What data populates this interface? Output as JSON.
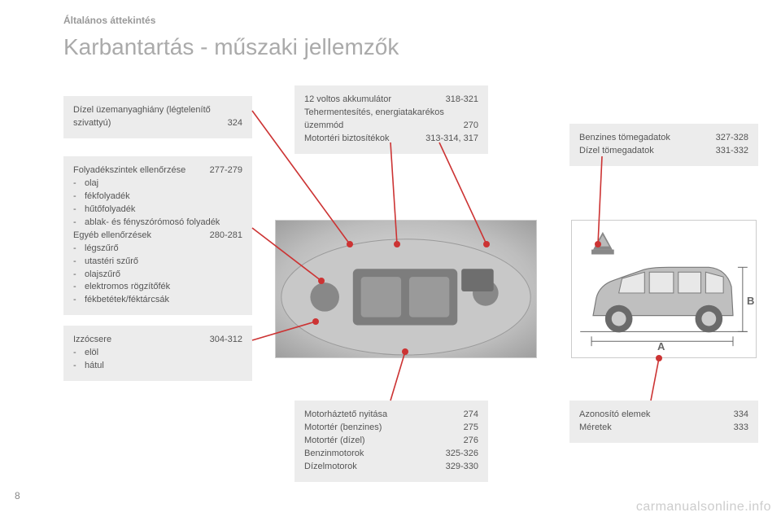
{
  "header": {
    "subtitle": "Általános áttekintés",
    "title": "Karbantartás - műszaki jellemzők"
  },
  "boxes": {
    "diesel_fuel": {
      "line1_label": "Dízel üzemanyaghiány (légtelenítő",
      "line2_label": "  szivattyú)",
      "line2_pages": "324"
    },
    "battery": {
      "r1_label": "12 voltos akkumulátor",
      "r1_pages": "318-321",
      "r2_label": "Tehermentesítés, energiatakarékos",
      "r3_label": "  üzemmód",
      "r3_pages": "270",
      "r4_label": "Motortéri biztosítékok",
      "r4_pages": "313-314, 317"
    },
    "weights": {
      "r1_label": "Benzines tömegadatok",
      "r1_pages": "327-328",
      "r2_label": "Dízel tömegadatok",
      "r2_pages": "331-332"
    },
    "fluids": {
      "r1_label": "Folyadékszintek ellenőrzése",
      "r1_pages": "277-279",
      "li1": "olaj",
      "li2": "fékfolyadék",
      "li3": "hűtőfolyadék",
      "li4": "ablak- és fényszórómosó folyadék",
      "r2_label": "Egyéb ellenőrzések",
      "r2_pages": "280-281",
      "li5": "légszűrő",
      "li6": "utastéri szűrő",
      "li7": "olajszűrő",
      "li8": "elektromos rögzítőfék",
      "li9": "fékbetétek/féktárcsák"
    },
    "bulbs": {
      "r1_label": "Izzócsere",
      "r1_pages": "304-312",
      "li1": "elöl",
      "li2": "hátul"
    },
    "engine": {
      "r1_label": "Motorháztető nyitása",
      "r1_pages": "274",
      "r2_label": "Motortér (benzines)",
      "r2_pages": "275",
      "r3_label": "Motortér (dízel)",
      "r3_pages": "276",
      "r4_label": "Benzinmotorok",
      "r4_pages": "325-326",
      "r5_label": "Dízelmotorok",
      "r5_pages": "329-330"
    },
    "ident": {
      "r1_label": "Azonosító elemek",
      "r1_pages": "334",
      "r2_label": "Méretek",
      "r2_pages": "333"
    }
  },
  "images": {
    "engine_alt": "",
    "car_alt": "",
    "dim_a": "A",
    "dim_b": "B"
  },
  "callouts": {
    "line_color": "#cc3333",
    "dot_radius": 4
  },
  "footer": {
    "page_number": "8",
    "watermark": "carmanualsonline.info"
  }
}
